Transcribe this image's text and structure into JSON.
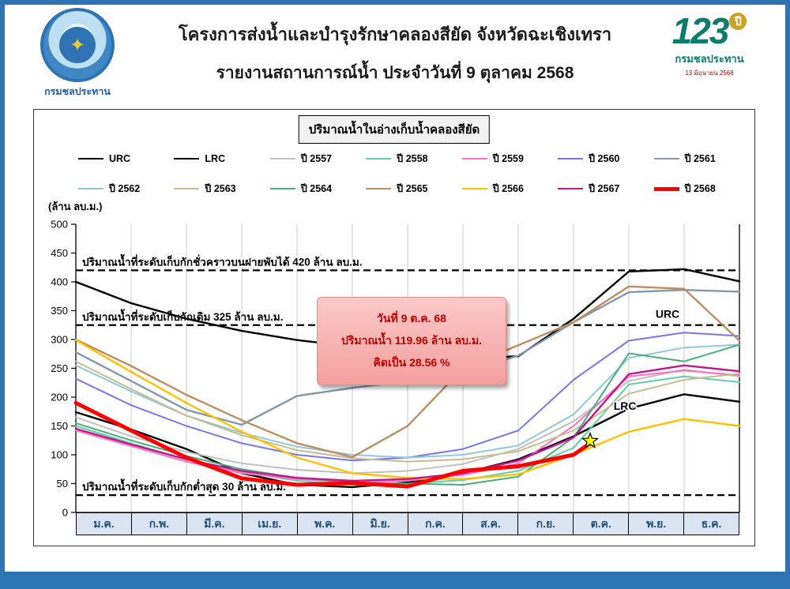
{
  "page": {
    "frame_color": "#2e73b4"
  },
  "header": {
    "title_line1": "โครงการส่งน้ำและบำรุงรักษาคลองสียัด จังหวัดฉะเชิงเทรา",
    "title_line2": "รายงานสถานการณ์น้ำ ประจำวันที่ 9 ตุลาคม 2568",
    "left_logo_caption": "กรมชลประทาน",
    "left_logo_glyph": "✦",
    "right_logo_number": "123",
    "right_logo_year": "ปี",
    "right_logo_caption": "กรมชลประทาน",
    "right_logo_subcaption": "13 มิถุนายน 2568"
  },
  "annotation": {
    "line1": "วันที่ 9 ต.ค. 68",
    "line2": "ปริมาณน้ำ 119.96 ล้าน ลบ.ม.",
    "line3": "คิดเป็น 28.56 %"
  },
  "chart_data": {
    "type": "line",
    "title": "ปริมาณน้ำในอ่างเก็บน้ำคลองสียัด",
    "unit_label": "(ล้าน ลบ.ม.)",
    "ylim": [
      0,
      500
    ],
    "ytick_step": 50,
    "grid": "vertical",
    "legend_position": "top",
    "categories": [
      "ม.ค.",
      "ก.พ.",
      "มี.ค.",
      "เม.ย.",
      "พ.ค.",
      "มิ.ย.",
      "ก.ค.",
      "ส.ค.",
      "ก.ย.",
      "ต.ค.",
      "พ.ย.",
      "ธ.ค."
    ],
    "reference_lines": [
      {
        "value": 420,
        "label": "ปริมาณน้ำที่ระดับเก็บกักชั่วคราวบนฝายพับได้ 420 ล้าน ลบ.ม."
      },
      {
        "value": 325,
        "label": "ปริมาณน้ำที่ระดับเก็บกักเดิม 325 ล้าน ลบ.ม."
      },
      {
        "value": 30,
        "label": "ปริมาณน้ำที่ระดับเก็บกักต่ำสุด 30 ล้าน ลบ.ม."
      }
    ],
    "inline_labels": [
      {
        "text": "URC",
        "x": 10.7,
        "value": 338
      },
      {
        "text": "LRC",
        "x": 9.93,
        "value": 178
      }
    ],
    "marker": {
      "x": 9.3,
      "value": 124,
      "shape": "star",
      "fill": "#ffff00"
    },
    "series": [
      {
        "name": "URC",
        "color": "#000000",
        "width": 2.4,
        "values": [
          400,
          363,
          336,
          315,
          299,
          288,
          278,
          267,
          271,
          336,
          418,
          422,
          401
        ]
      },
      {
        "name": "LRC",
        "color": "#000000",
        "width": 2.4,
        "values": [
          174,
          144,
          110,
          68,
          48,
          44,
          52,
          68,
          92,
          132,
          180,
          205,
          192
        ]
      },
      {
        "name": "ปี 2557",
        "color": "#c0c0c0",
        "width": 2,
        "values": [
          165,
          132,
          105,
          85,
          74,
          68,
          72,
          84,
          110,
          158,
          228,
          248,
          236
        ]
      },
      {
        "name": "ปี 2558",
        "color": "#5dd0a8",
        "width": 2,
        "values": [
          150,
          120,
          92,
          70,
          55,
          48,
          50,
          56,
          72,
          112,
          222,
          236,
          226
        ]
      },
      {
        "name": "ปี 2559",
        "color": "#ff6ec7",
        "width": 2,
        "values": [
          142,
          115,
          88,
          68,
          58,
          52,
          55,
          65,
          85,
          150,
          236,
          246,
          238
        ]
      },
      {
        "name": "ปี 2560",
        "color": "#7776ee",
        "width": 2,
        "values": [
          232,
          186,
          150,
          120,
          100,
          90,
          95,
          110,
          142,
          230,
          298,
          312,
          306
        ]
      },
      {
        "name": "ปี 2561",
        "color": "#8497ab",
        "width": 2.4,
        "values": [
          278,
          228,
          178,
          152,
          202,
          216,
          228,
          242,
          272,
          330,
          382,
          386,
          383
        ]
      },
      {
        "name": "ปี 2562",
        "color": "#92c6dc",
        "width": 2,
        "values": [
          255,
          210,
          168,
          138,
          114,
          100,
          95,
          100,
          116,
          170,
          268,
          286,
          291
        ]
      },
      {
        "name": "ปี 2563",
        "color": "#c5bd90",
        "width": 2,
        "values": [
          262,
          214,
          168,
          134,
          108,
          94,
          88,
          92,
          106,
          142,
          206,
          230,
          241
        ]
      },
      {
        "name": "ปี 2564",
        "color": "#45b077",
        "width": 2,
        "values": [
          155,
          125,
          98,
          75,
          60,
          52,
          50,
          48,
          62,
          130,
          276,
          262,
          291
        ]
      },
      {
        "name": "ปี 2565",
        "color": "#bd8d62",
        "width": 2.4,
        "values": [
          300,
          254,
          204,
          160,
          120,
          96,
          150,
          250,
          290,
          330,
          392,
          388,
          298
        ]
      },
      {
        "name": "ปี 2566",
        "color": "#ffc000",
        "width": 2.4,
        "values": [
          299,
          244,
          190,
          140,
          95,
          68,
          60,
          58,
          66,
          100,
          140,
          162,
          150
        ]
      },
      {
        "name": "ปี 2567",
        "color": "#c2188e",
        "width": 2.4,
        "values": [
          145,
          118,
          92,
          72,
          60,
          55,
          58,
          68,
          90,
          130,
          240,
          255,
          245
        ]
      },
      {
        "name": "ปี 2568",
        "color": "#ff0000",
        "width": 5,
        "x": [
          0,
          1,
          2,
          3,
          4,
          5,
          6,
          7,
          8,
          9,
          9.3
        ],
        "values": [
          190,
          142,
          95,
          59,
          48,
          51,
          45,
          72,
          80,
          100,
          120
        ]
      }
    ]
  }
}
